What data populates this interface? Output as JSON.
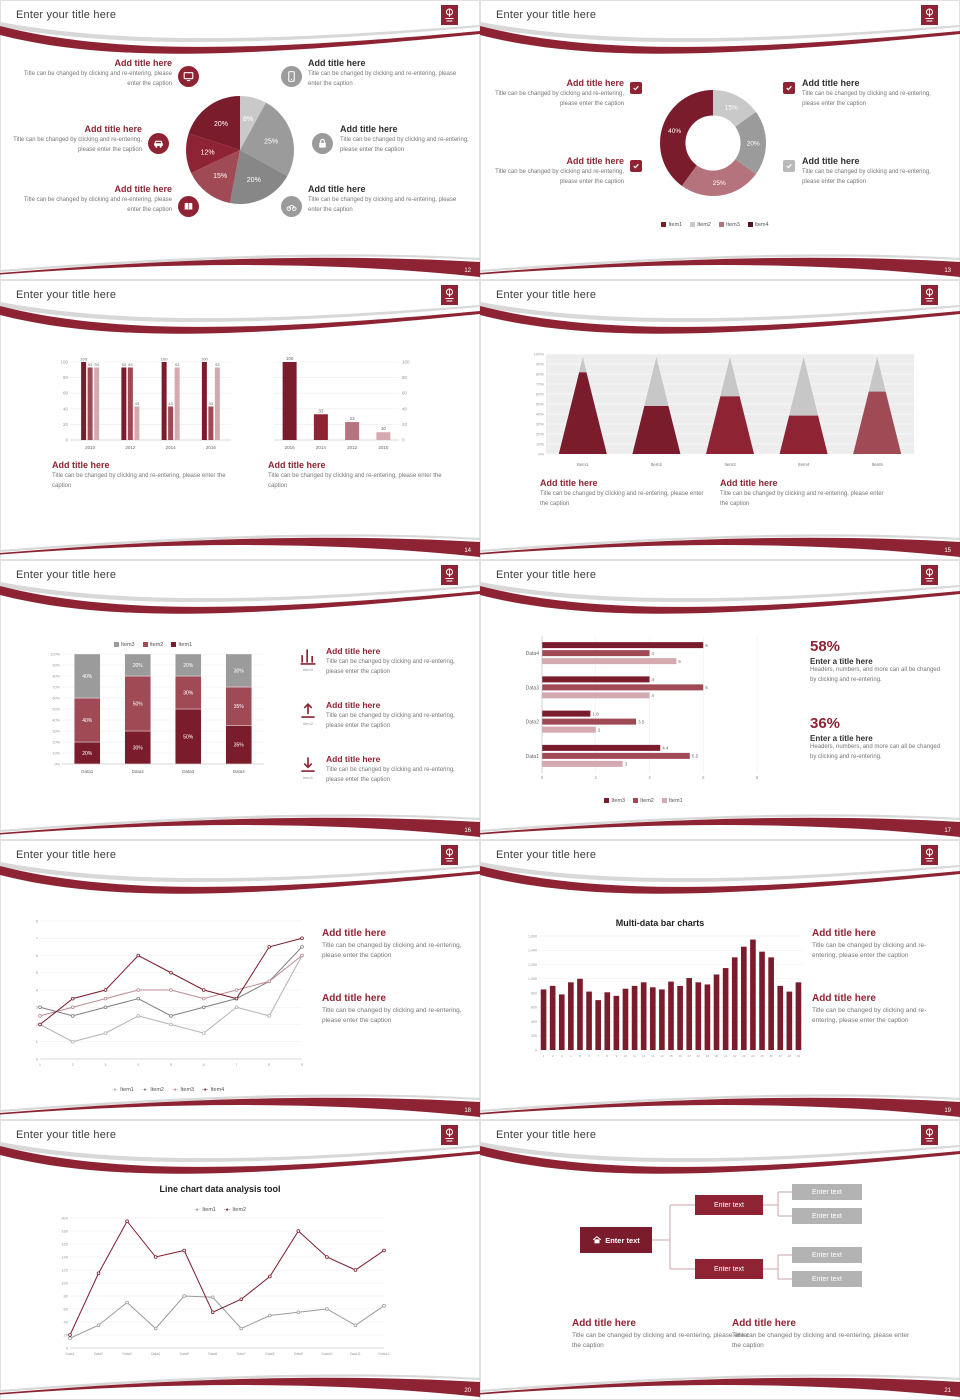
{
  "theme": {
    "maroon_dark": "#7a1c2b",
    "maroon": "#8e2433",
    "rose": "#b5737e",
    "pink": "#d4aab0",
    "gray": "#9b9b9b"
  },
  "slides": [
    {
      "title": "Enter your title here",
      "page": "12",
      "chart_data": {
        "type": "pie",
        "values": [
          8,
          25,
          20,
          15,
          12,
          20
        ],
        "labels": [
          "8%",
          "25%",
          "20%",
          "15%",
          "12%",
          "20%"
        ],
        "colors": [
          "#c9c9c9",
          "#9b9b9b",
          "#878787",
          "#a04a56",
          "#8e2433",
          "#7a1c2b"
        ]
      },
      "blocks": [
        {
          "title": "Add title here",
          "caption": "Title can be changed by clicking and re-entering, please enter the caption"
        },
        {
          "title": "Add title here",
          "caption": "Title can be changed by clicking and re-entering, please enter the caption"
        },
        {
          "title": "Add title here",
          "caption": "Title can be changed by clicking and re-entering, please enter the caption"
        },
        {
          "title": "Add title here",
          "caption": "Title can be changed by clicking and re-entering, please enter the caption"
        },
        {
          "title": "Add title here",
          "caption": "Title can be changed by clicking and re-entering, please enter the caption"
        },
        {
          "title": "Add title here",
          "caption": "Title can be changed by clicking and re-entering, please enter the caption"
        }
      ]
    },
    {
      "title": "Enter your title here",
      "page": "13",
      "chart_data": {
        "type": "pie",
        "subtype": "donut",
        "values": [
          15,
          20,
          25,
          40
        ],
        "labels": [
          "15%",
          "20%",
          "25%",
          "40%"
        ],
        "colors": [
          "#c9c9c9",
          "#9b9b9b",
          "#b5737e",
          "#7a1c2b"
        ],
        "legend": [
          {
            "label": "Item1",
            "color": "#7a1c2b"
          },
          {
            "label": "Item2",
            "color": "#c9c9c9"
          },
          {
            "label": "Item3",
            "color": "#b5737e"
          },
          {
            "label": "Item4",
            "color": "#55121f"
          }
        ]
      },
      "blocks": [
        {
          "title": "Add title here",
          "caption": "Title can be changed by clicking and re-entering, please enter the caption"
        },
        {
          "title": "Add title here",
          "caption": "Title can be changed by clicking and re-entering, please enter the caption"
        },
        {
          "title": "Add title here",
          "caption": "Title can be changed by clicking and re-entering, please enter the caption"
        },
        {
          "title": "Add title here",
          "caption": "Title can be changed by clicking and re-entering, please enter the caption"
        }
      ]
    },
    {
      "title": "Enter your title here",
      "page": "14",
      "chart_data": [
        {
          "type": "bar",
          "categories": [
            "2010",
            "2012",
            "2014",
            "2016"
          ],
          "groups": [
            [
              100,
              93,
              93
            ],
            [
              93,
              93,
              43
            ],
            [
              100,
              43,
              93
            ],
            [
              100,
              43,
              93
            ]
          ],
          "colors": [
            "#7a1c2b",
            "#a04a56",
            "#d4aab0"
          ],
          "ylim": [
            0,
            100
          ],
          "yticks": 20,
          "axis_side": "left"
        },
        {
          "type": "bar",
          "categories": [
            "2016",
            "2014",
            "2012",
            "2010"
          ],
          "values": [
            100,
            33,
            23,
            10
          ],
          "colors": [
            "#7a1c2b",
            "#8e2433",
            "#b5737e",
            "#d4aab0"
          ],
          "ylim": [
            0,
            100
          ],
          "yticks": 20,
          "axis_side": "right"
        }
      ],
      "blocks": [
        {
          "title": "Add title here",
          "caption": "Title can be changed by clicking and re-entering, please enter the caption"
        },
        {
          "title": "Add title here",
          "caption": "Title can be changed by clicking and re-entering, please enter the caption"
        }
      ]
    },
    {
      "title": "Enter your title here",
      "page": "15",
      "chart_data": {
        "type": "cone",
        "categories": [
          "Item1",
          "Item2",
          "Item3",
          "Item4",
          "Item5"
        ],
        "values": [
          85,
          50,
          60,
          40,
          65
        ],
        "ylim": [
          0,
          100
        ],
        "yticks": 10,
        "fill_colors": [
          "#7a1c2b",
          "#7a1c2b",
          "#8e2433",
          "#8e2433",
          "#a04a56"
        ],
        "body_color": "#c7c7c7"
      },
      "blocks": [
        {
          "title": "Add title here",
          "caption": "Title can be changed by clicking and re-entering, please enter the caption"
        },
        {
          "title": "Add title here",
          "caption": "Title can be changed by clicking and re-entering, please enter the caption"
        }
      ]
    },
    {
      "title": "Enter your title here",
      "page": "16",
      "chart_data": {
        "type": "stacked_bar",
        "categories": [
          "Data1",
          "Data2",
          "Data3",
          "Data4"
        ],
        "series": [
          {
            "name": "Item1",
            "color": "#7a1c2b",
            "values": [
              20,
              30,
              50,
              35
            ]
          },
          {
            "name": "Item2",
            "color": "#a04a56",
            "values": [
              40,
              50,
              30,
              35
            ]
          },
          {
            "name": "Item3",
            "color": "#9b9b9b",
            "values": [
              40,
              20,
              20,
              30
            ]
          }
        ],
        "legend": [
          {
            "label": "Item3",
            "color": "#9b9b9b"
          },
          {
            "label": "Item2",
            "color": "#a04a56"
          },
          {
            "label": "Item1",
            "color": "#7a1c2b"
          }
        ],
        "ylim": [
          0,
          100
        ],
        "yticks": 10
      },
      "rows": [
        {
          "tag": "Item3",
          "title": "Add title here",
          "caption": "Title can be changed by clicking and re-entering, please enter the caption"
        },
        {
          "tag": "Item2",
          "title": "Add title here",
          "caption": "Title can be changed by clicking and re-entering, please enter the caption"
        },
        {
          "tag": "Item1",
          "title": "Add title here",
          "caption": "Title can be changed by clicking and re-entering, please enter the caption"
        }
      ]
    },
    {
      "title": "Enter your title here",
      "page": "17",
      "chart_data": {
        "type": "hbar",
        "categories": [
          "Data4",
          "Data3",
          "Data2",
          "Data1"
        ],
        "series": [
          {
            "name": "Item3",
            "color": "#7a1c2b",
            "values": [
              6,
              4,
              1.8,
              4.4
            ]
          },
          {
            "name": "Item2",
            "color": "#a04a56",
            "values": [
              4,
              6,
              3.5,
              5.5
            ]
          },
          {
            "name": "Item1",
            "color": "#d4aab0",
            "values": [
              5,
              4,
              2,
              3
            ]
          }
        ],
        "legend": [
          {
            "label": "Item3",
            "color": "#7a1c2b"
          },
          {
            "label": "Item2",
            "color": "#a04a56"
          },
          {
            "label": "Item1",
            "color": "#d4aab0"
          }
        ],
        "xlim": [
          0,
          8
        ],
        "xticks": 2
      },
      "stats": [
        {
          "value": "58%",
          "title": "Enter a title here",
          "caption": "Headers, numbers, and more can all be changed by clicking and re-entering."
        },
        {
          "value": "36%",
          "title": "Enter a title here",
          "caption": "Headers, numbers, and more can all be changed by clicking and re-entering."
        }
      ]
    },
    {
      "title": "Enter your title here",
      "page": "18",
      "chart_data": {
        "type": "line",
        "x": [
          "1",
          "2",
          "3",
          "4",
          "5",
          "6",
          "7",
          "8",
          "9"
        ],
        "ylim": [
          0,
          8
        ],
        "yticks": 1,
        "series": [
          {
            "name": "Item1",
            "color": "#b3b3b3",
            "values": [
              2,
              1,
              1.5,
              2.5,
              2,
              1.5,
              3,
              2.5,
              6
            ]
          },
          {
            "name": "Item2",
            "color": "#808080",
            "values": [
              3,
              2.5,
              3,
              3.5,
              2.5,
              3,
              3.5,
              4.5,
              6.5
            ]
          },
          {
            "name": "Item3",
            "color": "#c08a93",
            "values": [
              2.5,
              3,
              3.5,
              4,
              4,
              3.5,
              4,
              4.5,
              6
            ]
          },
          {
            "name": "Item4",
            "color": "#7a1c2b",
            "values": [
              2,
              3.5,
              4,
              6,
              5,
              4,
              3.5,
              6.5,
              7
            ]
          }
        ]
      },
      "blocks": [
        {
          "title": "Add title here",
          "caption": "Title can be changed by clicking and re-entering, please enter the caption"
        },
        {
          "title": "Add title here",
          "caption": "Title can be changed by clicking and re-entering, please enter the caption"
        }
      ]
    },
    {
      "title": "Enter your title here",
      "page": "19",
      "chart_data": {
        "type": "bar",
        "title": "Multi-data bar charts",
        "values": [
          850,
          900,
          780,
          950,
          1000,
          820,
          700,
          810,
          760,
          860,
          900,
          950,
          880,
          850,
          960,
          900,
          1010,
          950,
          920,
          1060,
          1150,
          1300,
          1450,
          1550,
          1380,
          1300,
          900,
          820,
          950
        ],
        "ylim": [
          0,
          1600
        ],
        "yticks": 200,
        "color": "#7a1c2b"
      },
      "blocks": [
        {
          "title": "Add title here",
          "caption": "Title can be changed by clicking and re-entering, please enter the caption"
        },
        {
          "title": "Add title here",
          "caption": "Title can be changed by clicking and re-entering, please enter the caption"
        }
      ]
    },
    {
      "title": "Enter your title here",
      "page": "20",
      "chart_data": {
        "type": "line",
        "title": "Line chart data analysis tool",
        "x": [
          "Data1",
          "Data2",
          "Data3",
          "Data4",
          "Data5",
          "Data6",
          "Data7",
          "Data8",
          "Data9",
          "Data10",
          "Data11",
          "Data12"
        ],
        "ylim": [
          0,
          200
        ],
        "yticks": 20,
        "series": [
          {
            "name": "Item1",
            "color": "#9b9b9b",
            "values": [
              15,
              35,
              70,
              30,
              80,
              78,
              30,
              50,
              55,
              60,
              35,
              65
            ]
          },
          {
            "name": "Item2",
            "color": "#7a1c2b",
            "values": [
              20,
              115,
              195,
              140,
              150,
              55,
              75,
              110,
              180,
              140,
              120,
              150
            ]
          }
        ]
      }
    },
    {
      "title": "Enter your title here",
      "page": "21",
      "flow": {
        "root": "Enter text",
        "mid": [
          "Enter text",
          "Enter text"
        ],
        "leaves": [
          "Enter text",
          "Enter text",
          "Enter text",
          "Enter text"
        ]
      },
      "blocks": [
        {
          "title": "Add title here",
          "caption": "Title can be changed by clicking and re-entering, please enter the caption"
        },
        {
          "title": "Add title here",
          "caption": "Title can be changed by clicking and re-entering, please enter the caption"
        }
      ]
    }
  ]
}
